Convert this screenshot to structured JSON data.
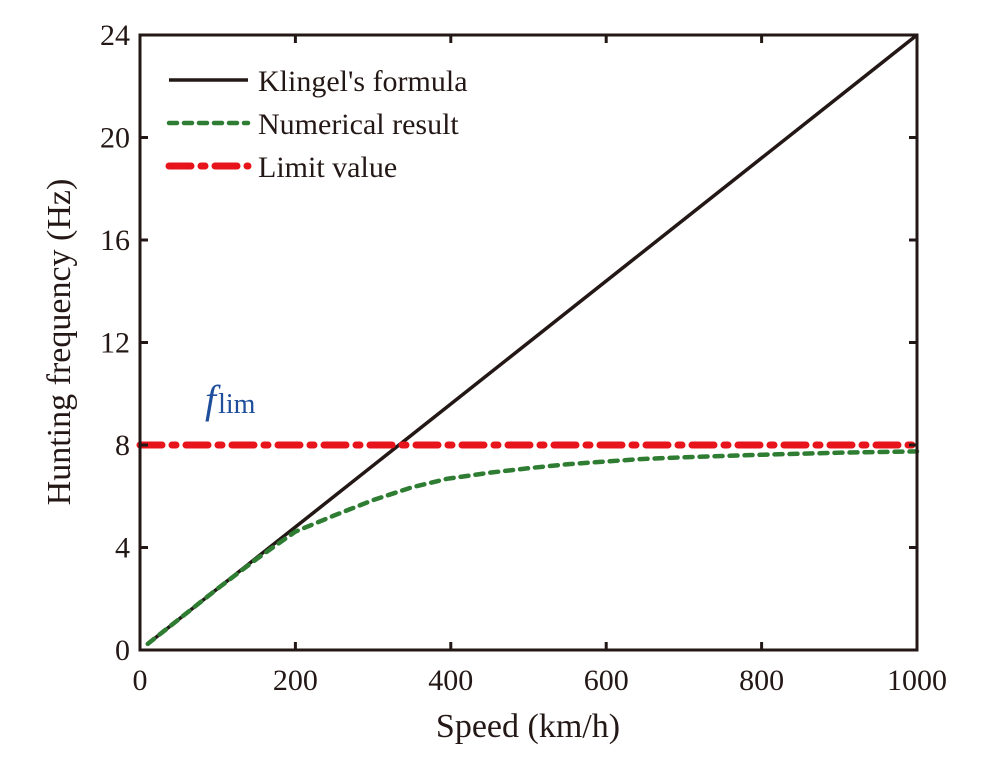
{
  "chart_data": {
    "type": "line",
    "title": "",
    "xlabel": "Speed (km/h)",
    "ylabel": "Hunting frequency (Hz)",
    "xlim": [
      0,
      1000
    ],
    "ylim": [
      0,
      24
    ],
    "xticks": [
      0,
      200,
      400,
      600,
      800,
      1000
    ],
    "yticks": [
      0,
      4,
      8,
      12,
      16,
      20,
      24
    ],
    "grid": false,
    "legend_position": "top-left",
    "annotation": {
      "text_main": "f",
      "text_sub": "lim",
      "x": 10,
      "y": 9,
      "color": "#1f4e9c"
    },
    "series": [
      {
        "name": "Klingel's formula",
        "color": "#231815",
        "style": "solid",
        "x": [
          10,
          1000
        ],
        "y": [
          0.24,
          24
        ]
      },
      {
        "name": "Numerical result",
        "color": "#2e7d32",
        "style": "dashed",
        "x": [
          10,
          50,
          100,
          150,
          170,
          200,
          250,
          275,
          300,
          350,
          395,
          450,
          502,
          550,
          644,
          700,
          800,
          900,
          1000
        ],
        "y": [
          0.24,
          1.2,
          2.4,
          3.55,
          3.98,
          4.62,
          5.25,
          5.55,
          5.85,
          6.35,
          6.68,
          6.92,
          7.1,
          7.25,
          7.45,
          7.52,
          7.62,
          7.7,
          7.75
        ]
      },
      {
        "name": "Limit value",
        "color": "#e8141b",
        "style": "dashdot",
        "x": [
          0,
          1000
        ],
        "y": [
          8,
          8
        ]
      }
    ]
  }
}
